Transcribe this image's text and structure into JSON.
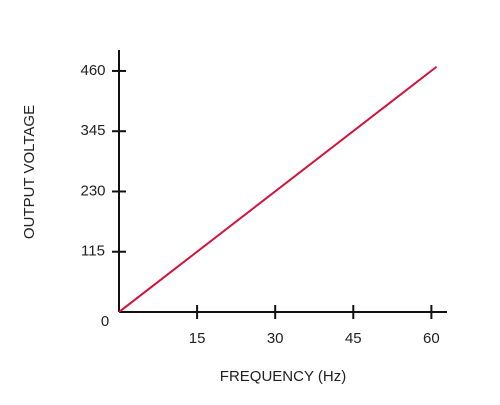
{
  "chart_data": {
    "type": "line",
    "x_label": "FREQUENCY (Hz)",
    "y_label": "OUTPUT VOLTAGE",
    "x": [
      0,
      61
    ],
    "series": [
      {
        "color": "#d0143c",
        "values": [
          0,
          468
        ]
      }
    ],
    "xlim": [
      0,
      63
    ],
    "ylim": [
      0,
      500
    ],
    "xticks": [
      15,
      30,
      45,
      60
    ],
    "yticks": [
      0,
      115,
      230,
      345,
      460
    ]
  }
}
